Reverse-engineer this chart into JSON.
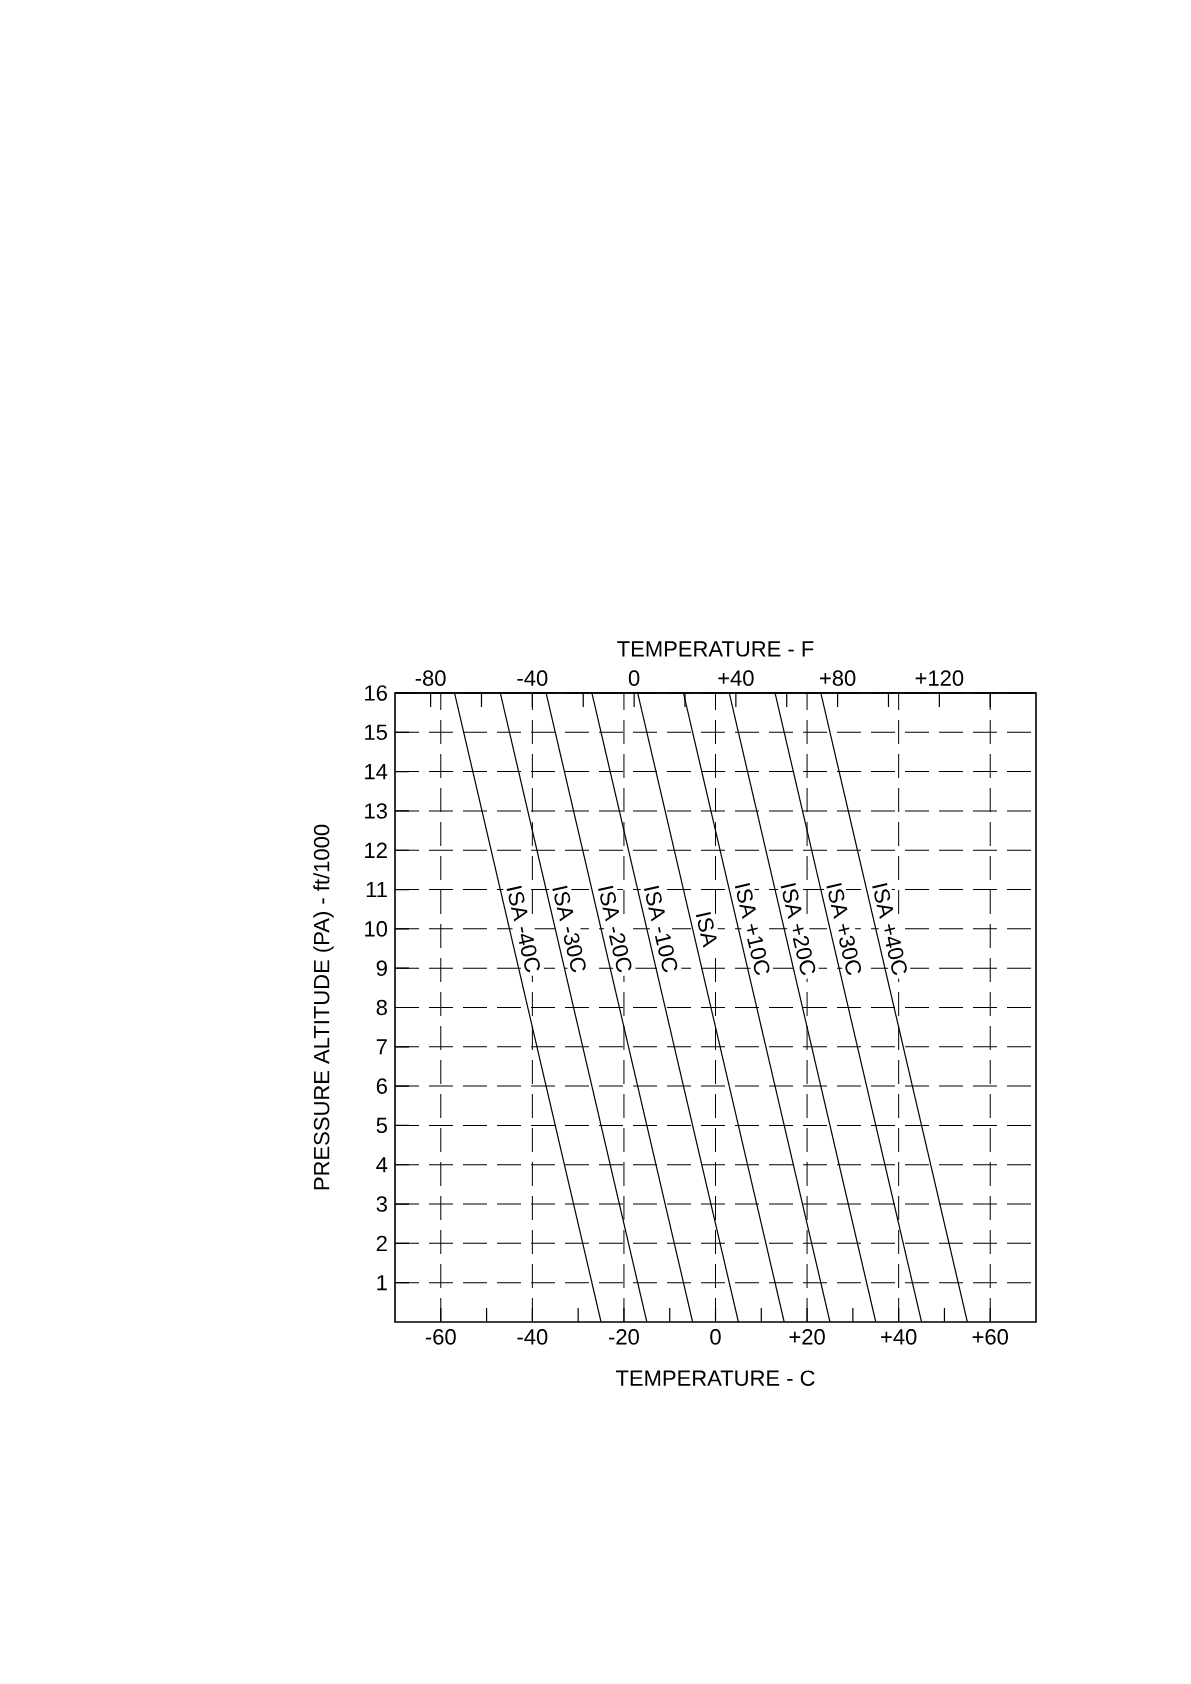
{
  "chart_data": {
    "type": "line",
    "xlabel": "TEMPERATURE - C",
    "ylabel": "PRESSURE ALTITUDE (PA) - ft/1000",
    "x2label": "TEMPERATURE - F",
    "xlim": [
      -70,
      70
    ],
    "ylim": [
      0,
      16
    ],
    "x2lim": [
      -94,
      158
    ],
    "xticks": [
      -60,
      {
        "value": -50,
        "label": null
      },
      -40,
      {
        "value": -30,
        "label": null
      },
      -20,
      {
        "value": -10,
        "label": null
      },
      0,
      {
        "value": 10,
        "label": null
      },
      {
        "value": 20,
        "label": "+20"
      },
      {
        "value": 30,
        "label": null
      },
      {
        "value": 40,
        "label": "+40"
      },
      {
        "value": 50,
        "label": null
      },
      {
        "value": 60,
        "label": "+60"
      }
    ],
    "x2ticks": [
      -80,
      {
        "value": -60,
        "label": null
      },
      -40,
      {
        "value": -20,
        "label": null
      },
      0,
      {
        "value": 20,
        "label": null
      },
      {
        "value": 40,
        "label": "+40"
      },
      {
        "value": 60,
        "label": null
      },
      {
        "value": 80,
        "label": "+80"
      },
      {
        "value": 100,
        "label": null
      },
      {
        "value": 120,
        "label": "+120"
      },
      {
        "value": 140,
        "label": null
      }
    ],
    "yticks": [
      1,
      2,
      3,
      4,
      5,
      6,
      7,
      8,
      9,
      10,
      11,
      12,
      13,
      14,
      15,
      16
    ],
    "grid": true,
    "marker": "none",
    "line_style": "solid",
    "series": [
      {
        "name": "ISA -40C",
        "color": "#000000",
        "x": [
          -25,
          -57
        ],
        "values": [
          0,
          16
        ]
      },
      {
        "name": "ISA -30C",
        "color": "#000000",
        "x": [
          -15,
          -47
        ],
        "values": [
          0,
          16
        ]
      },
      {
        "name": "ISA -20C",
        "color": "#000000",
        "x": [
          -5,
          -37
        ],
        "values": [
          0,
          16
        ]
      },
      {
        "name": "ISA -10C",
        "color": "#000000",
        "x": [
          5,
          -27
        ],
        "values": [
          0,
          16
        ]
      },
      {
        "name": "ISA",
        "color": "#000000",
        "x": [
          15,
          -17
        ],
        "values": [
          0,
          16
        ]
      },
      {
        "name": "ISA +10C",
        "color": "#000000",
        "x": [
          25,
          -7
        ],
        "values": [
          0,
          16
        ]
      },
      {
        "name": "ISA +20C",
        "color": "#000000",
        "x": [
          35,
          3
        ],
        "values": [
          0,
          16
        ]
      },
      {
        "name": "ISA +30C",
        "color": "#000000",
        "x": [
          45,
          13
        ],
        "values": [
          0,
          16
        ]
      },
      {
        "name": "ISA +40C",
        "color": "#000000",
        "x": [
          55,
          23
        ],
        "values": [
          0,
          16
        ]
      }
    ]
  }
}
